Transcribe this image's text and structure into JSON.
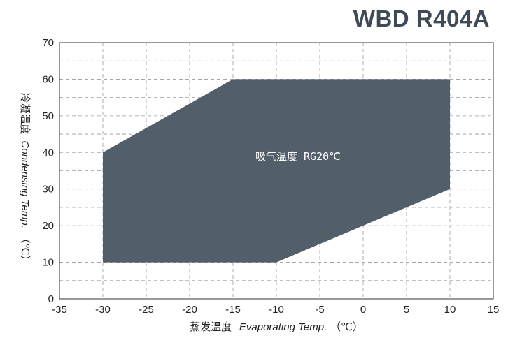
{
  "title": "WBD R404A",
  "chart_data": {
    "type": "area",
    "title": "WBD R404A",
    "xlabel": "蒸发温度 Evaporating Temp.（℃）",
    "xlabel_cn": "蒸发温度",
    "xlabel_en": "Evaporating Temp.",
    "xlabel_unit": "（℃）",
    "ylabel": "冷凝温度 Condensing Temp.（℃）",
    "ylabel_cn": "冷凝温度",
    "ylabel_en": "Condensing Temp.",
    "ylabel_unit": "（℃）",
    "xlim": [
      -35,
      15
    ],
    "ylim": [
      0,
      70
    ],
    "xticks": [
      -35,
      -30,
      -25,
      -20,
      -15,
      -10,
      -5,
      0,
      5,
      10,
      15
    ],
    "yticks": [
      0,
      10,
      20,
      30,
      40,
      50,
      60,
      70
    ],
    "grid": true,
    "series": [
      {
        "name": "吸气温度 RG20℃",
        "points": [
          {
            "x": -30,
            "y": 10
          },
          {
            "x": -30,
            "y": 40
          },
          {
            "x": -15,
            "y": 60
          },
          {
            "x": 10,
            "y": 60
          },
          {
            "x": 10,
            "y": 30
          },
          {
            "x": -10,
            "y": 10
          }
        ]
      }
    ],
    "region_label": "吸气温度 RG20℃",
    "colors": {
      "region": "#525e6a",
      "title": "#3f4a57",
      "grid": "#9a9a9a"
    }
  }
}
